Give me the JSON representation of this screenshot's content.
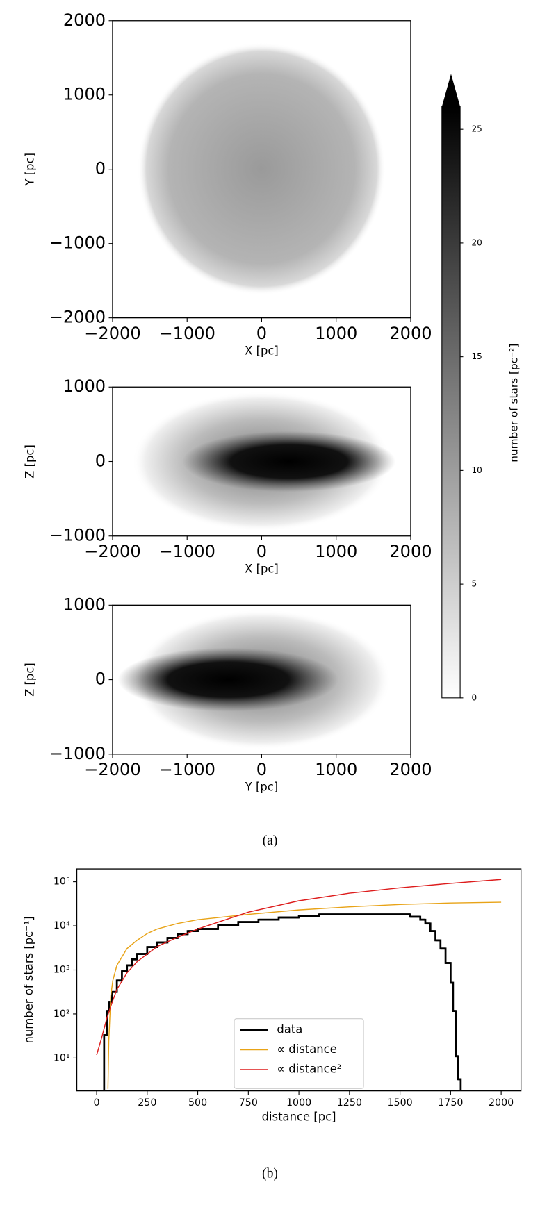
{
  "chart_data": [
    {
      "type": "heatmap",
      "xlabel": "X [pc]",
      "ylabel": "Y [pc]",
      "xlim": [
        -2000,
        2000
      ],
      "ylim": [
        -2000,
        2000
      ],
      "xticks": [
        {
          "value": -2000,
          "label": "−2000"
        },
        {
          "value": -1000,
          "label": "−1000"
        },
        0,
        1000,
        2000
      ],
      "yticks": [
        {
          "value": -2000,
          "label": "−2000"
        },
        {
          "value": -1000,
          "label": "−1000"
        },
        0,
        1000,
        2000
      ]
    },
    {
      "type": "heatmap",
      "xlabel": "X [pc]",
      "ylabel": "Z [pc]",
      "xlim": [
        -2000,
        2000
      ],
      "ylim": [
        -1000,
        1000
      ],
      "xticks": [
        {
          "value": -2000,
          "label": "−2000"
        },
        {
          "value": -1000,
          "label": "−1000"
        },
        0,
        1000,
        2000
      ],
      "yticks": [
        {
          "value": -1000,
          "label": "−1000"
        },
        0,
        1000
      ]
    },
    {
      "type": "heatmap",
      "xlabel": "Y [pc]",
      "ylabel": "Z [pc]",
      "xlim": [
        -2000,
        2000
      ],
      "ylim": [
        -1000,
        1000
      ],
      "xticks": [
        {
          "value": -2000,
          "label": "−2000"
        },
        {
          "value": -1000,
          "label": "−1000"
        },
        0,
        1000,
        2000
      ],
      "yticks": [
        {
          "value": -1000,
          "label": "−1000"
        },
        0,
        1000
      ]
    },
    {
      "type": "colorbar",
      "label": "number of stars [pc⁻²]",
      "clim": [
        0,
        26
      ],
      "ticks": [
        0,
        5,
        10,
        15,
        20,
        25
      ],
      "extend": "max"
    },
    {
      "type": "line",
      "xlabel": "distance [pc]",
      "ylabel": "number of stars [pc⁻¹]",
      "log_y": true,
      "legend": "lower center",
      "xlim": [
        -98,
        2098
      ],
      "ylim": [
        1.8,
        196000
      ],
      "xticks": [
        0,
        250,
        500,
        750,
        1000,
        1250,
        1500,
        1750,
        2000
      ],
      "yticks": [
        {
          "value": 10,
          "label": "10¹"
        },
        {
          "value": 100,
          "label": "10²"
        },
        {
          "value": 1000,
          "label": "10³"
        },
        {
          "value": 10000,
          "label": "10⁴"
        },
        {
          "value": 100000,
          "label": "10⁵"
        }
      ],
      "series": [
        {
          "name": "data",
          "color": "#000000",
          "steps": true,
          "x": [
            37,
            50,
            62,
            75,
            100,
            125,
            150,
            175,
            200,
            250,
            300,
            350,
            400,
            450,
            500,
            600,
            700,
            800,
            900,
            1000,
            1100,
            1200,
            1300,
            1400,
            1500,
            1550,
            1600,
            1625,
            1650,
            1675,
            1700,
            1725,
            1750,
            1762,
            1775,
            1787,
            1800
          ],
          "values": [
            33,
            117,
            188,
            316,
            575,
            930,
            1270,
            1740,
            2300,
            3300,
            4200,
            5300,
            6500,
            7600,
            8500,
            10400,
            12200,
            13800,
            15500,
            16700,
            18200,
            18200,
            18200,
            18200,
            18200,
            16100,
            13800,
            11300,
            7600,
            4700,
            3050,
            1440,
            510,
            117,
            11,
            3.3,
            1
          ]
        },
        {
          "name": "∝ distance",
          "color": "#e8a317",
          "x": [
            56,
            60,
            70,
            80,
            100,
            150,
            200,
            250,
            300,
            400,
            500,
            750,
            1000,
            1250,
            1500,
            1750,
            2000
          ],
          "values": [
            2,
            24,
            260,
            575,
            1270,
            3050,
            4700,
            6700,
            8500,
            11300,
            13800,
            18200,
            23000,
            27000,
            30500,
            33000,
            34300
          ]
        },
        {
          "name": "∝ distance²",
          "color": "#dd1c1c",
          "x": [
            0,
            25,
            50,
            75,
            100,
            150,
            200,
            300,
            400,
            500,
            750,
            1000,
            1250,
            1500,
            1750,
            2000
          ],
          "values": [
            11.7,
            29,
            79,
            175,
            360,
            860,
            1540,
            3400,
            5500,
            8500,
            20500,
            37000,
            55000,
            73000,
            92000,
            113000
          ]
        }
      ]
    }
  ],
  "captions": [
    "(a)",
    "(b)"
  ]
}
